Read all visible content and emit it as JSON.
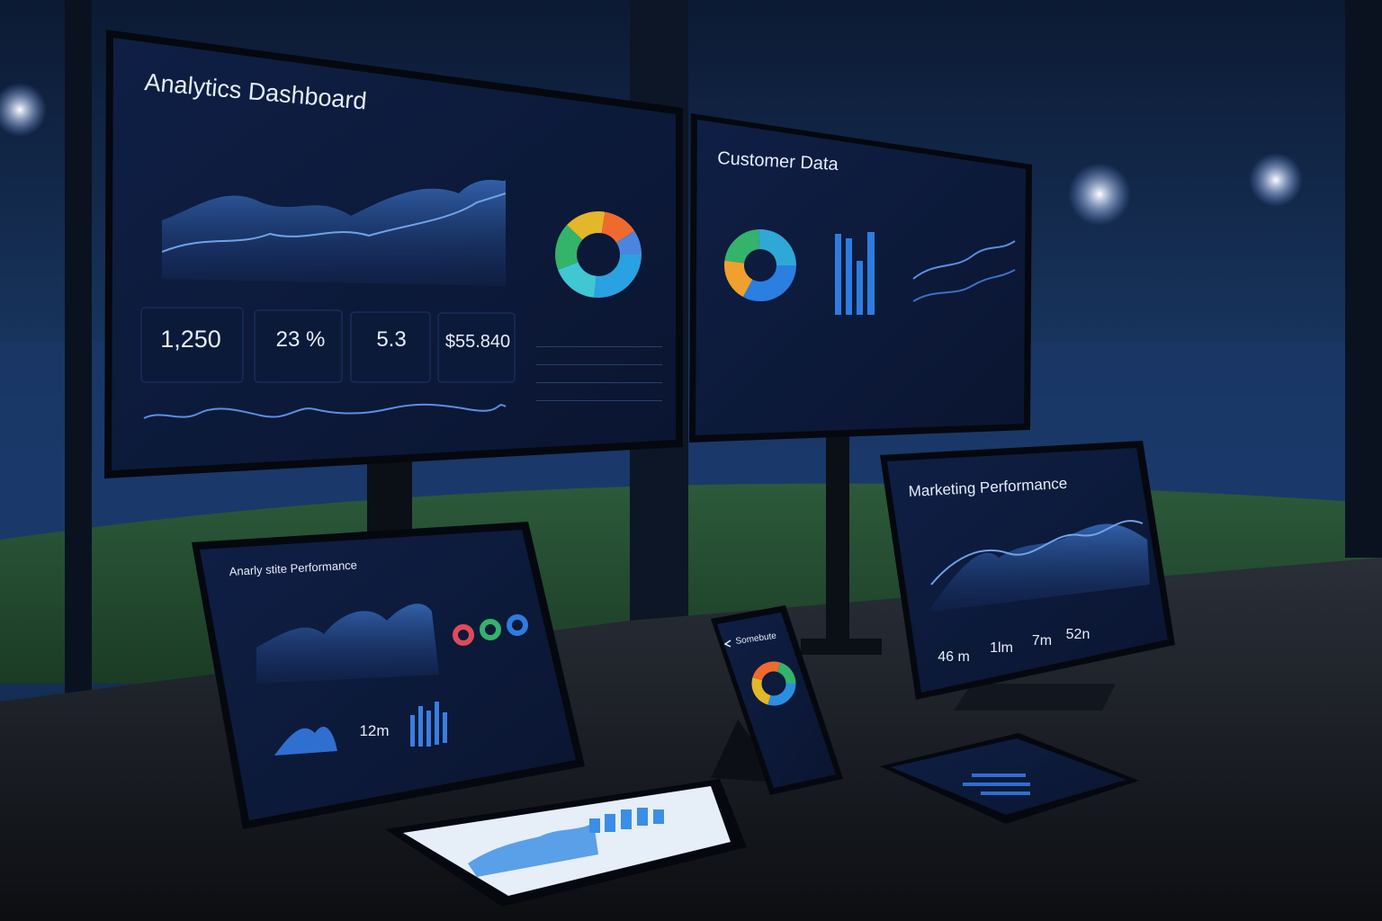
{
  "screens": [
    {
      "title": "Analytics Dashboard",
      "kpis": [
        "1,250",
        "23 %",
        "5.3",
        "$55.840"
      ]
    },
    {
      "title": "Customer Data"
    },
    {
      "title": "Anarly stite Performance",
      "kpis": [
        "12m"
      ]
    },
    {
      "title": "Marketing Performance",
      "kpis": [
        "46 m",
        "1lm",
        "7m",
        "52n"
      ]
    },
    {
      "title": "Somebute"
    }
  ]
}
